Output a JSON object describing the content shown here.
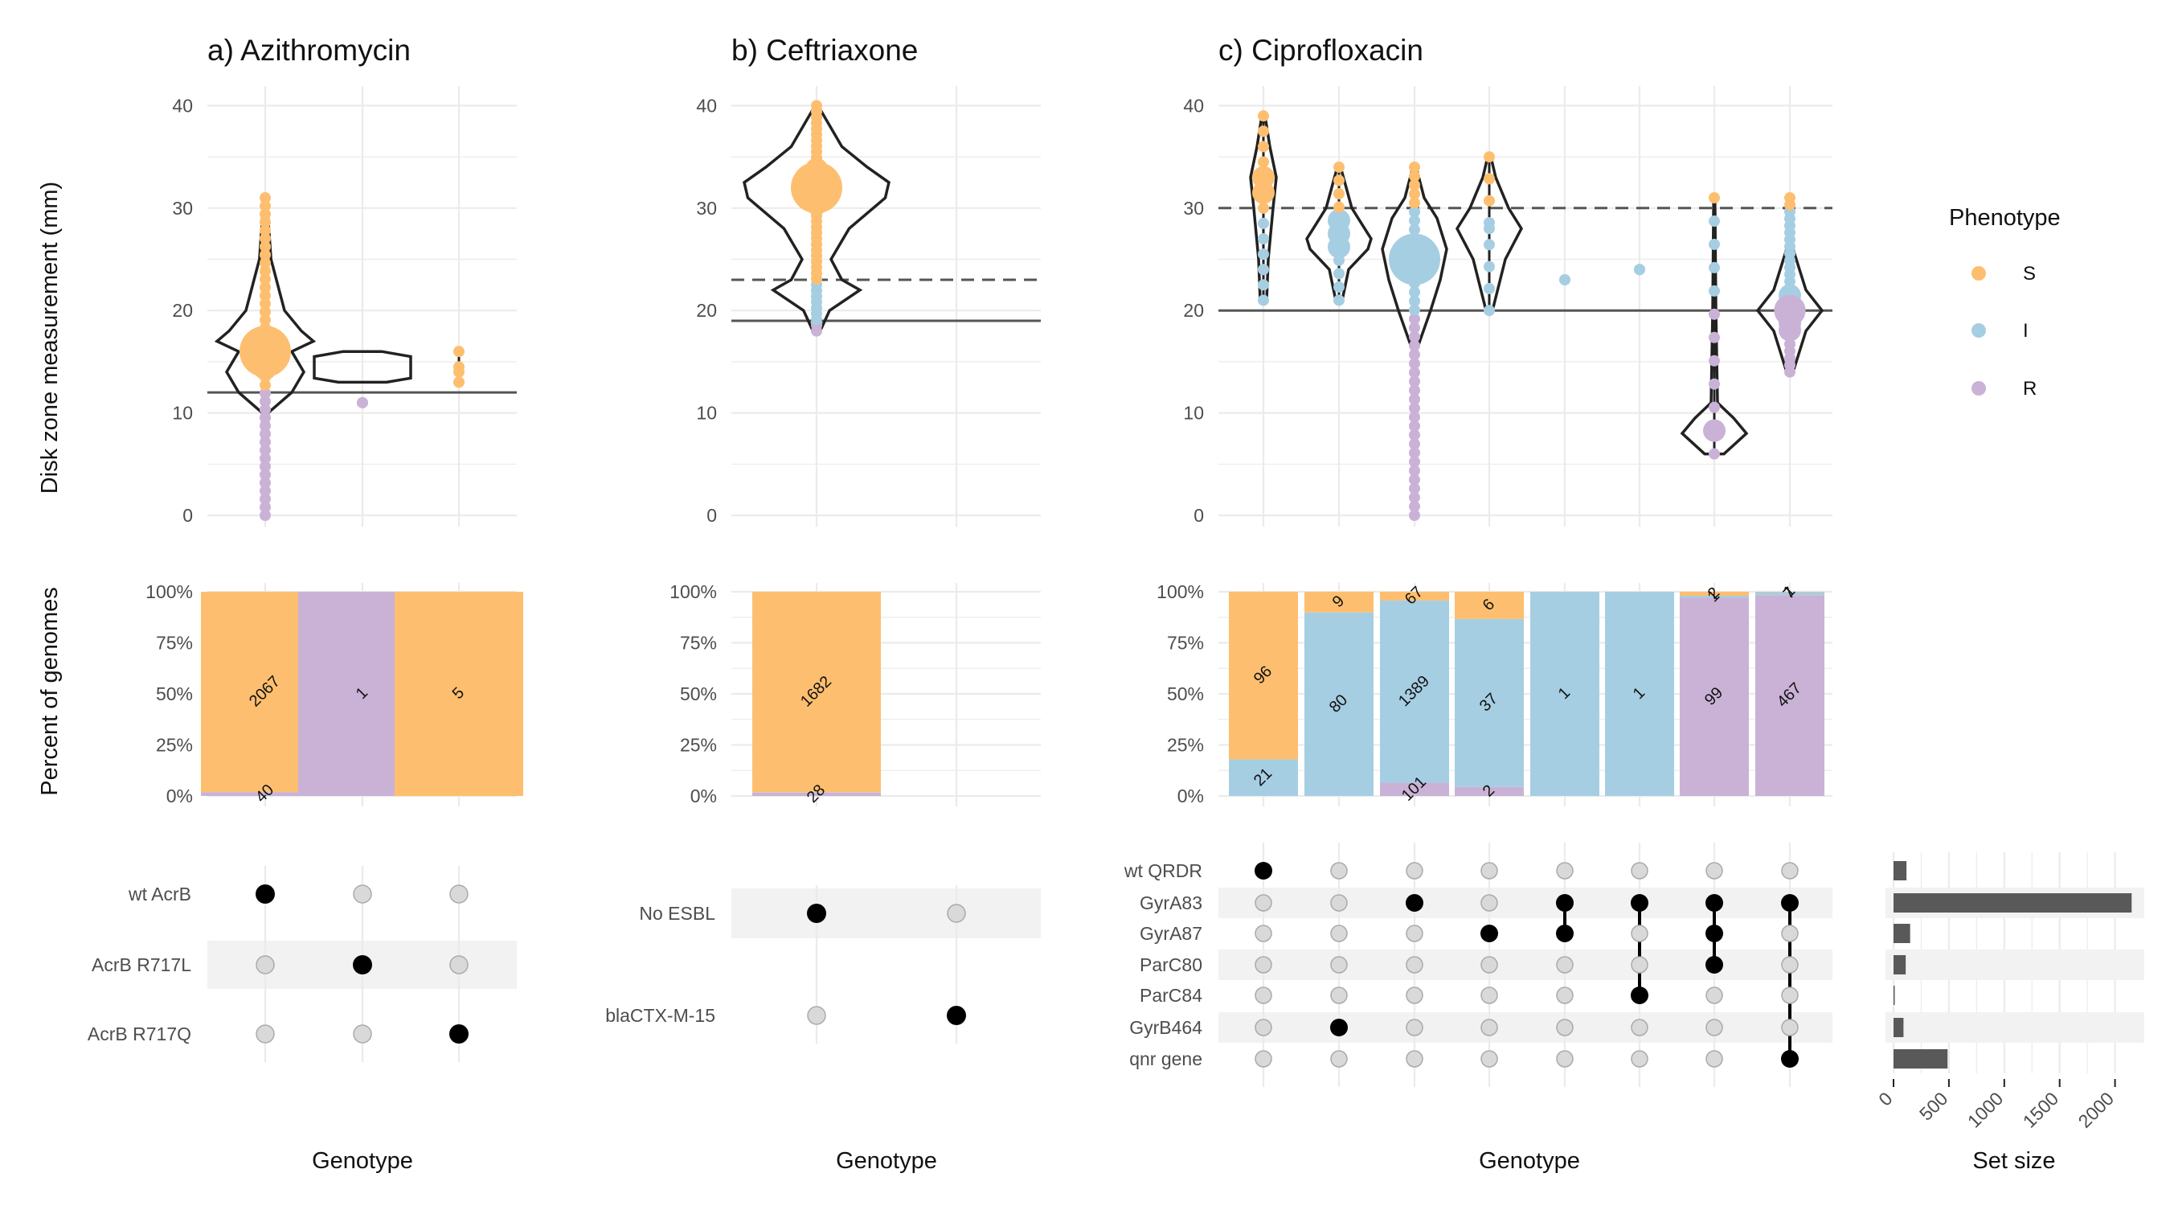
{
  "colors": {
    "S": "#FDBF6F",
    "I": "#A6CEE3",
    "R": "#CAB2D6",
    "dot_on": "#000000",
    "dot_off": "#D9D9D9",
    "setbar": "#595959"
  },
  "labels": {
    "y_top": "Disk zone measurement (mm)",
    "y_mid": "Percent of genomes",
    "x_genotype": "Genotype",
    "x_setsize": "Set size",
    "legend_title": "Phenotype"
  },
  "legend": [
    "S",
    "I",
    "R"
  ],
  "y_ticks_top": [
    "0",
    "10",
    "20",
    "30",
    "40"
  ],
  "y_ticks_mid": [
    "0%",
    "25%",
    "50%",
    "75%",
    "100%"
  ],
  "set_size_ticks": [
    "0",
    "500",
    "1000",
    "1500",
    "2000"
  ],
  "chart_data": [
    {
      "type": "violin+stacked_bar+upset",
      "title": "a) Azithromycin",
      "ylim": [
        0,
        40
      ],
      "breakpoints": [
        {
          "value": 12,
          "style": "solid"
        }
      ],
      "sets": [
        "wt AcrB",
        "AcrB R717L",
        "AcrB R717Q"
      ],
      "combinations": [
        {
          "members": [
            "wt AcrB"
          ],
          "range": [
            0,
            31
          ],
          "median": 16,
          "counts": {
            "S": 2067,
            "I": 0,
            "R": 40
          },
          "labels": [
            "2067",
            "40"
          ]
        },
        {
          "members": [
            "AcrB R717L"
          ],
          "range": [
            11,
            11
          ],
          "median": 11,
          "counts": {
            "S": 0,
            "I": 0,
            "R": 1
          },
          "labels": [
            "1"
          ]
        },
        {
          "members": [
            "AcrB R717Q"
          ],
          "range": [
            13,
            16
          ],
          "median": 14,
          "counts": {
            "S": 5,
            "I": 0,
            "R": 0
          },
          "labels": [
            "5"
          ]
        }
      ]
    },
    {
      "type": "violin+stacked_bar+upset",
      "title": "b) Ceftriaxone",
      "ylim": [
        0,
        40
      ],
      "breakpoints": [
        {
          "value": 23,
          "style": "dashed"
        },
        {
          "value": 19,
          "style": "solid"
        }
      ],
      "sets": [
        "No ESBL",
        "blaCTX-M-15"
      ],
      "combinations": [
        {
          "members": [
            "No ESBL"
          ],
          "range": [
            18,
            40
          ],
          "median": 32,
          "counts": {
            "S": 1682,
            "I": 3,
            "R": 28
          },
          "labels": [
            "1682",
            "28"
          ]
        },
        {
          "members": [
            "blaCTX-M-15"
          ],
          "range": null,
          "median": null,
          "counts": {
            "S": 0,
            "I": 0,
            "R": 0
          },
          "labels": []
        }
      ]
    },
    {
      "type": "violin+stacked_bar+upset",
      "title": "c) Ciprofloxacin",
      "ylim": [
        0,
        40
      ],
      "breakpoints": [
        {
          "value": 30,
          "style": "dashed"
        },
        {
          "value": 20,
          "style": "solid"
        }
      ],
      "sets": [
        "wt QRDR",
        "GyrA83",
        "GyrA87",
        "ParC80",
        "ParC84",
        "GyrB464",
        "qnr gene"
      ],
      "set_sizes": [
        117,
        2150,
        150,
        110,
        5,
        90,
        488
      ],
      "combinations": [
        {
          "members": [
            "wt QRDR"
          ],
          "range": [
            21,
            39
          ],
          "median": 32,
          "counts": {
            "S": 96,
            "I": 21,
            "R": 0
          },
          "labels": [
            "96",
            "21"
          ]
        },
        {
          "members": [
            "GyrB464"
          ],
          "range": [
            21,
            34
          ],
          "median": 27,
          "counts": {
            "S": 9,
            "I": 80,
            "R": 0
          },
          "labels": [
            "9",
            "80"
          ]
        },
        {
          "members": [
            "GyrA83"
          ],
          "range": [
            0,
            34
          ],
          "median": 25,
          "counts": {
            "S": 67,
            "I": 1389,
            "R": 101
          },
          "labels": [
            "67",
            "1389",
            "101"
          ]
        },
        {
          "members": [
            "GyrA87"
          ],
          "range": [
            20,
            35
          ],
          "median": 28,
          "counts": {
            "S": 6,
            "I": 37,
            "R": 2
          },
          "labels": [
            "6",
            "37",
            "2"
          ]
        },
        {
          "members": [
            "GyrA83",
            "GyrA87"
          ],
          "range": [
            23,
            23
          ],
          "median": 23,
          "counts": {
            "S": 0,
            "I": 1,
            "R": 0
          },
          "labels": [
            "1"
          ]
        },
        {
          "members": [
            "GyrA83",
            "ParC84"
          ],
          "range": [
            24,
            24
          ],
          "median": 24,
          "counts": {
            "S": 0,
            "I": 1,
            "R": 0
          },
          "labels": [
            "1"
          ]
        },
        {
          "members": [
            "GyrA83",
            "GyrA87",
            "ParC80"
          ],
          "range": [
            6,
            31
          ],
          "median": 8,
          "counts": {
            "S": 2,
            "I": 1,
            "R": 99
          },
          "labels": [
            "2",
            "1",
            "99"
          ]
        },
        {
          "members": [
            "GyrA83",
            "qnr gene"
          ],
          "range": [
            14,
            31
          ],
          "median": 20,
          "counts": {
            "S": 1,
            "I": 7,
            "R": 467
          },
          "labels": [
            "1",
            "7",
            "467"
          ]
        }
      ]
    }
  ]
}
